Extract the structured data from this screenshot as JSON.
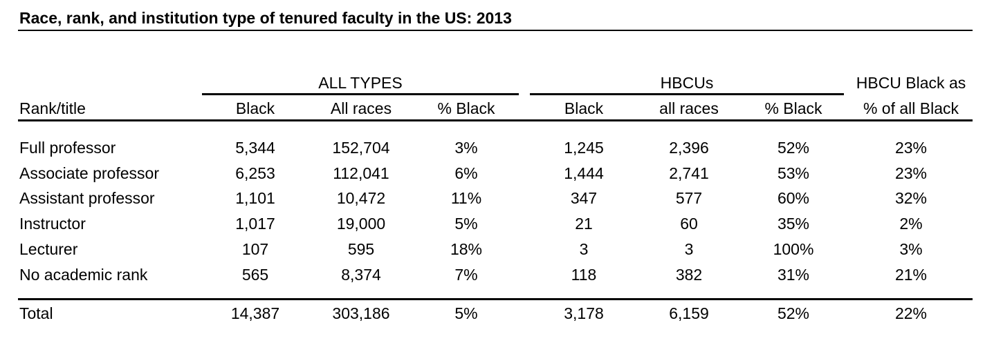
{
  "title": "Race, rank, and institution type of tenured faculty in the US: 2013",
  "group_headers": {
    "all_types": "ALL TYPES",
    "hbcus": "HBCUs",
    "hbcu_black_line1": "HBCU Black as",
    "hbcu_black_line2": "% of all Black"
  },
  "columns": {
    "rank": "Rank/title",
    "all_black": "Black",
    "all_races": "All races",
    "all_pct": "% Black",
    "hbcu_black": "Black",
    "hbcu_races": "all races",
    "hbcu_pct": "% Black"
  },
  "rows": [
    {
      "rank": "Full professor",
      "all_black": "5,344",
      "all_races": "152,704",
      "all_pct": "3%",
      "hbcu_black": "1,245",
      "hbcu_races": "2,396",
      "hbcu_pct": "52%",
      "share": "23%"
    },
    {
      "rank": "Associate professor",
      "all_black": "6,253",
      "all_races": "112,041",
      "all_pct": "6%",
      "hbcu_black": "1,444",
      "hbcu_races": "2,741",
      "hbcu_pct": "53%",
      "share": "23%"
    },
    {
      "rank": "Assistant professor",
      "all_black": "1,101",
      "all_races": "10,472",
      "all_pct": "11%",
      "hbcu_black": "347",
      "hbcu_races": "577",
      "hbcu_pct": "60%",
      "share": "32%"
    },
    {
      "rank": "Instructor",
      "all_black": "1,017",
      "all_races": "19,000",
      "all_pct": "5%",
      "hbcu_black": "21",
      "hbcu_races": "60",
      "hbcu_pct": "35%",
      "share": "2%"
    },
    {
      "rank": "Lecturer",
      "all_black": "107",
      "all_races": "595",
      "all_pct": "18%",
      "hbcu_black": "3",
      "hbcu_races": "3",
      "hbcu_pct": "100%",
      "share": "3%"
    },
    {
      "rank": "No academic rank",
      "all_black": "565",
      "all_races": "8,374",
      "all_pct": "7%",
      "hbcu_black": "118",
      "hbcu_races": "382",
      "hbcu_pct": "31%",
      "share": "21%"
    }
  ],
  "total": {
    "rank": "Total",
    "all_black": "14,387",
    "all_races": "303,186",
    "all_pct": "5%",
    "hbcu_black": "3,178",
    "hbcu_races": "6,159",
    "hbcu_pct": "52%",
    "share": "22%"
  }
}
